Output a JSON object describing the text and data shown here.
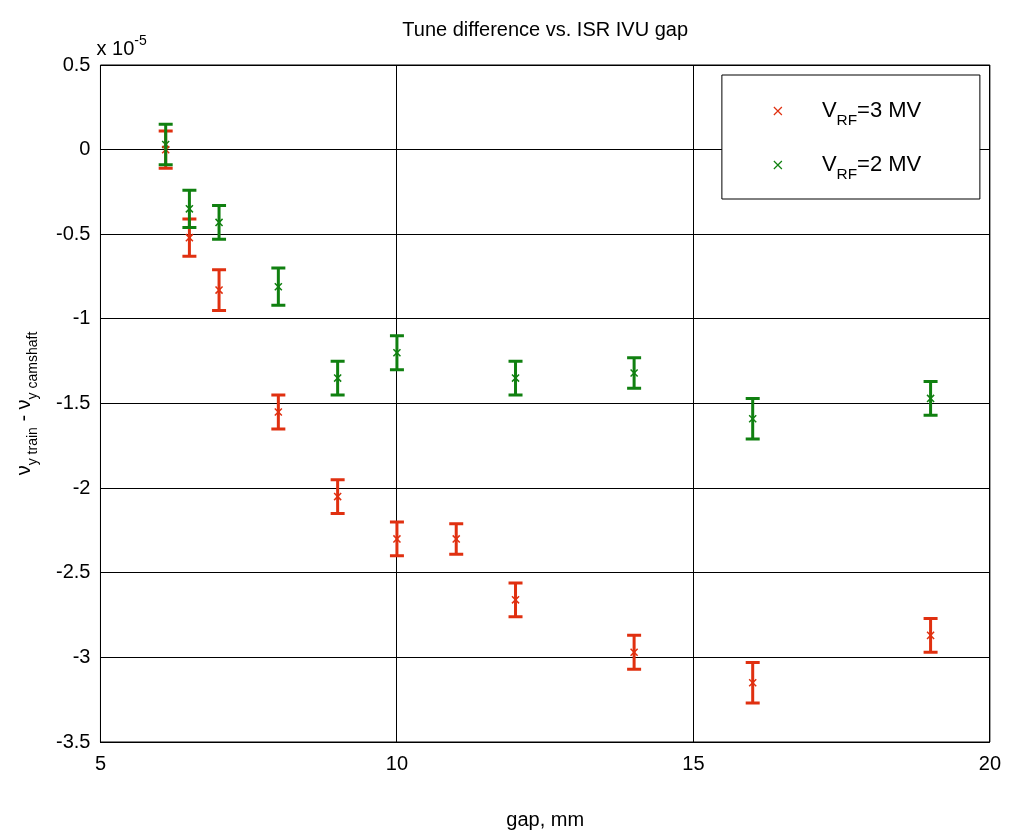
{
  "chart_data": {
    "type": "scatter",
    "title": "Tune difference vs. ISR IVU gap",
    "xlabel": "gap, mm",
    "ylabel": "ν$_{y train}$ - ν$_{y camshaft}$",
    "annotations": [
      "x 10$^{-5}$"
    ],
    "series": [
      {
        "name": "V$_{RF}$=3 MV",
        "color": "#e03010",
        "x": [
          6.1,
          6.5,
          7,
          8,
          9,
          10,
          11,
          12,
          14,
          16,
          19
        ],
        "values": [
          0.0,
          -0.52,
          -0.83,
          -1.55,
          -2.05,
          -2.3,
          -2.3,
          -2.66,
          -2.97,
          -3.15,
          -2.87
        ],
        "errors": [
          0.11,
          0.11,
          0.12,
          0.1,
          0.1,
          0.1,
          0.09,
          0.1,
          0.1,
          0.12,
          0.1
        ]
      },
      {
        "name": "V$_{RF}$=2 MV",
        "color": "#108010",
        "x": [
          6.1,
          6.5,
          7,
          8,
          9,
          10,
          12,
          14,
          16,
          19
        ],
        "values": [
          0.03,
          -0.35,
          -0.43,
          -0.81,
          -1.35,
          -1.2,
          -1.35,
          -1.32,
          -1.59,
          -1.47
        ],
        "errors": [
          0.12,
          0.11,
          0.1,
          0.11,
          0.1,
          0.1,
          0.1,
          0.09,
          0.12,
          0.1
        ]
      }
    ],
    "xlim": [
      5,
      20
    ],
    "xticks": [
      5,
      10,
      15,
      20
    ],
    "ylim": [
      -3.5,
      0.5
    ],
    "yticks": [
      -3.5,
      -3,
      -2.5,
      -2,
      -1.5,
      -1,
      -0.5,
      0,
      0.5
    ],
    "grid": true,
    "legend": "top right",
    "marker": "cross",
    "line_style": "none"
  }
}
